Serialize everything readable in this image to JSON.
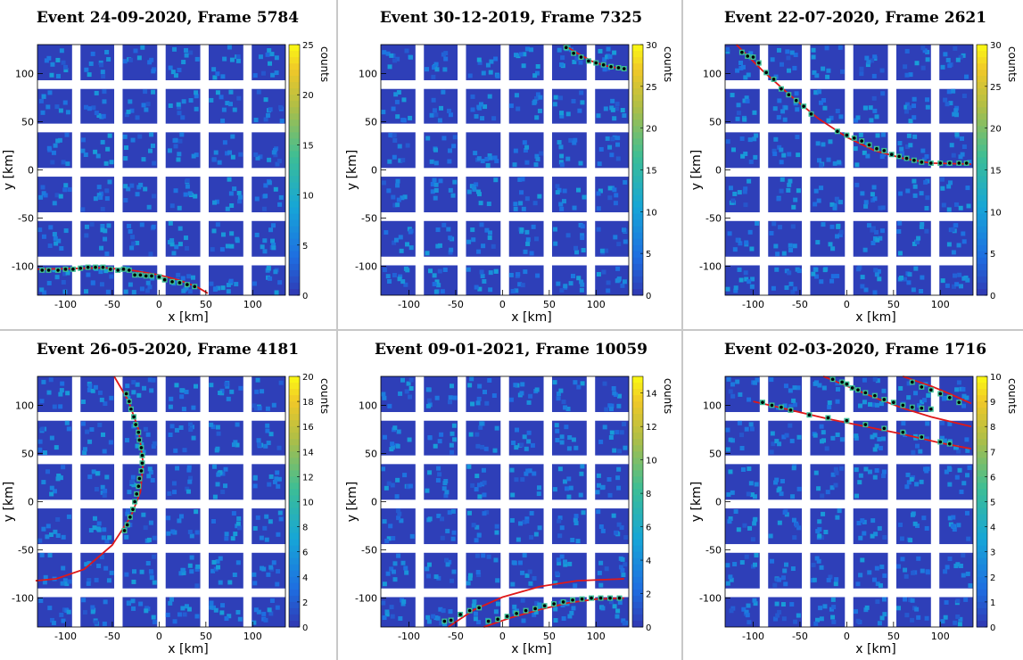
{
  "chart_data": [
    {
      "type": "heatmap",
      "title": "Event 24-09-2020, Frame 5784",
      "xlabel": "x [km]",
      "ylabel": "y [km]",
      "zlabel": "counts",
      "xlim": [
        -130,
        135
      ],
      "ylim": [
        -130,
        130
      ],
      "xticks": [
        "-100",
        "-50",
        "0",
        "50",
        "100"
      ],
      "xtick_values": [
        -100,
        -50,
        0,
        50,
        100
      ],
      "yticks": [
        "100",
        "50",
        "0",
        "-50",
        "-100"
      ],
      "ytick_values": [
        100,
        50,
        0,
        -50,
        -100
      ],
      "zlim": [
        0,
        25
      ],
      "zticks": [
        "0",
        "5",
        "10",
        "15",
        "20",
        "25"
      ],
      "ztick_values": [
        0,
        5,
        10,
        15,
        20,
        25
      ],
      "track_points": [
        [
          -125,
          -104
        ],
        [
          -118,
          -104
        ],
        [
          -108,
          -104
        ],
        [
          -100,
          -103
        ],
        [
          -92,
          -103
        ],
        [
          -84,
          -102
        ],
        [
          -76,
          -101
        ],
        [
          -68,
          -101
        ],
        [
          -60,
          -101
        ],
        [
          -52,
          -103
        ],
        [
          -44,
          -104
        ],
        [
          -38,
          -103
        ],
        [
          -32,
          -104
        ],
        [
          -26,
          -109
        ],
        [
          -20,
          -109
        ],
        [
          -14,
          -110
        ],
        [
          -8,
          -110
        ],
        [
          0,
          -111
        ],
        [
          6,
          -114
        ],
        [
          14,
          -116
        ],
        [
          22,
          -117
        ],
        [
          30,
          -119
        ],
        [
          38,
          -121
        ]
      ],
      "fit_curves": [
        [
          [
            -130,
            -103
          ],
          [
            -100,
            -102.5
          ],
          [
            -60,
            -101.5
          ],
          [
            -30,
            -104
          ],
          [
            0,
            -109
          ],
          [
            20,
            -114
          ],
          [
            40,
            -121
          ],
          [
            52,
            -128
          ]
        ]
      ]
    },
    {
      "type": "heatmap",
      "title": "Event 30-12-2019, Frame 7325",
      "xlabel": "x [km]",
      "ylabel": "y [km]",
      "zlabel": "counts",
      "xlim": [
        -130,
        135
      ],
      "ylim": [
        -130,
        130
      ],
      "xticks": [
        "-100",
        "-50",
        "0",
        "50",
        "100"
      ],
      "xtick_values": [
        -100,
        -50,
        0,
        50,
        100
      ],
      "yticks": [
        "100",
        "50",
        "0",
        "-50",
        "-100"
      ],
      "ytick_values": [
        100,
        50,
        0,
        -50,
        -100
      ],
      "zlim": [
        0,
        30
      ],
      "zticks": [
        "0",
        "5",
        "10",
        "15",
        "20",
        "25",
        "30"
      ],
      "ztick_values": [
        0,
        5,
        10,
        15,
        20,
        25,
        30
      ],
      "track_points": [
        [
          68,
          127
        ],
        [
          76,
          121
        ],
        [
          84,
          117
        ],
        [
          92,
          113
        ],
        [
          100,
          111
        ],
        [
          108,
          109
        ],
        [
          116,
          107
        ],
        [
          124,
          106
        ],
        [
          130,
          105
        ]
      ],
      "fit_curves": [
        [
          [
            65,
            130
          ],
          [
            80,
            121
          ],
          [
            95,
            113
          ],
          [
            110,
            108
          ],
          [
            133,
            104
          ]
        ]
      ]
    },
    {
      "type": "heatmap",
      "title": "Event 22-07-2020, Frame 2621",
      "xlabel": "x [km]",
      "ylabel": "y [km]",
      "zlabel": "counts",
      "xlim": [
        -130,
        135
      ],
      "ylim": [
        -130,
        130
      ],
      "xticks": [
        "-100",
        "-50",
        "0",
        "50",
        "100"
      ],
      "xtick_values": [
        -100,
        -50,
        0,
        50,
        100
      ],
      "yticks": [
        "100",
        "50",
        "0",
        "-50",
        "-100"
      ],
      "ytick_values": [
        100,
        50,
        0,
        -50,
        -100
      ],
      "zlim": [
        0,
        30
      ],
      "zticks": [
        "0",
        "5",
        "10",
        "15",
        "20",
        "25",
        "30"
      ],
      "ztick_values": [
        0,
        5,
        10,
        15,
        20,
        25,
        30
      ],
      "track_points": [
        [
          -112,
          122
        ],
        [
          -106,
          118
        ],
        [
          -100,
          117
        ],
        [
          -94,
          111
        ],
        [
          -86,
          101
        ],
        [
          -78,
          94
        ],
        [
          -70,
          84
        ],
        [
          -62,
          78
        ],
        [
          -54,
          72
        ],
        [
          -46,
          66
        ],
        [
          -38,
          58
        ],
        [
          -10,
          40
        ],
        [
          0,
          36
        ],
        [
          8,
          33
        ],
        [
          16,
          30
        ],
        [
          24,
          26
        ],
        [
          32,
          22
        ],
        [
          40,
          20
        ],
        [
          48,
          16
        ],
        [
          56,
          14
        ],
        [
          64,
          12
        ],
        [
          72,
          10
        ],
        [
          80,
          8
        ],
        [
          90,
          7
        ],
        [
          100,
          7
        ],
        [
          110,
          7
        ],
        [
          120,
          7
        ],
        [
          128,
          7
        ]
      ],
      "fit_curves": [
        [
          [
            -118,
            130
          ],
          [
            -90,
            103
          ],
          [
            -60,
            77
          ],
          [
            -30,
            53
          ],
          [
            0,
            34
          ],
          [
            30,
            20
          ],
          [
            60,
            12
          ],
          [
            90,
            7
          ],
          [
            133,
            6
          ]
        ]
      ]
    },
    {
      "type": "heatmap",
      "title": "Event 26-05-2020, Frame 4181",
      "xlabel": "x [km]",
      "ylabel": "y [km]",
      "zlabel": "counts",
      "xlim": [
        -130,
        135
      ],
      "ylim": [
        -130,
        130
      ],
      "xticks": [
        "-100",
        "-50",
        "0",
        "50",
        "100"
      ],
      "xtick_values": [
        -100,
        -50,
        0,
        50,
        100
      ],
      "yticks": [
        "100",
        "50",
        "0",
        "-50",
        "-100"
      ],
      "ytick_values": [
        100,
        50,
        0,
        -50,
        -100
      ],
      "zlim": [
        0,
        20
      ],
      "zticks": [
        "0",
        "2",
        "4",
        "6",
        "8",
        "10",
        "12",
        "14",
        "16",
        "18",
        "20"
      ],
      "ztick_values": [
        0,
        2,
        4,
        6,
        8,
        10,
        12,
        14,
        16,
        18,
        20
      ],
      "track_points": [
        [
          -35,
          112
        ],
        [
          -32,
          104
        ],
        [
          -30,
          96
        ],
        [
          -27,
          88
        ],
        [
          -25,
          80
        ],
        [
          -22,
          72
        ],
        [
          -21,
          64
        ],
        [
          -19,
          56
        ],
        [
          -18,
          48
        ],
        [
          -18,
          40
        ],
        [
          -19,
          32
        ],
        [
          -21,
          24
        ],
        [
          -22,
          16
        ],
        [
          -24,
          8
        ],
        [
          -26,
          0
        ],
        [
          -28,
          -8
        ],
        [
          -31,
          -16
        ],
        [
          -34,
          -24
        ],
        [
          -37,
          -30
        ]
      ],
      "fit_curves": [
        [
          [
            -48,
            130
          ],
          [
            -33,
            105
          ],
          [
            -22,
            75
          ],
          [
            -17,
            40
          ],
          [
            -20,
            10
          ],
          [
            -30,
            -15
          ],
          [
            -50,
            -45
          ],
          [
            -80,
            -70
          ],
          [
            -110,
            -80
          ],
          [
            -132,
            -82
          ]
        ]
      ]
    },
    {
      "type": "heatmap",
      "title": "Event 09-01-2021, Frame 10059",
      "xlabel": "x [km]",
      "ylabel": "y [km]",
      "zlabel": "counts",
      "xlim": [
        -130,
        135
      ],
      "ylim": [
        -130,
        130
      ],
      "xticks": [
        "-100",
        "-50",
        "0",
        "50",
        "100"
      ],
      "xtick_values": [
        -100,
        -50,
        0,
        50,
        100
      ],
      "yticks": [
        "100",
        "50",
        "0",
        "-50",
        "-100"
      ],
      "ytick_values": [
        100,
        50,
        0,
        -50,
        -100
      ],
      "zlim": [
        0,
        15
      ],
      "zticks": [
        "0",
        "2",
        "4",
        "6",
        "8",
        "10",
        "12",
        "14"
      ],
      "ztick_values": [
        0,
        2,
        4,
        6,
        8,
        10,
        12,
        14
      ],
      "track_points": [
        [
          -62,
          -124
        ],
        [
          -55,
          -123
        ],
        [
          -45,
          -117
        ],
        [
          -35,
          -113
        ],
        [
          -25,
          -110
        ],
        [
          -15,
          -124
        ],
        [
          -5,
          -122
        ],
        [
          5,
          -119
        ],
        [
          15,
          -116
        ],
        [
          25,
          -113
        ],
        [
          35,
          -111
        ],
        [
          45,
          -108
        ],
        [
          55,
          -106
        ],
        [
          65,
          -104
        ],
        [
          75,
          -102
        ],
        [
          85,
          -101
        ],
        [
          95,
          -100
        ],
        [
          105,
          -100
        ],
        [
          115,
          -100
        ],
        [
          125,
          -100
        ]
      ],
      "fit_curves": [
        [
          [
            -58,
            -130
          ],
          [
            -30,
            -112
          ],
          [
            0,
            -99
          ],
          [
            40,
            -88
          ],
          [
            80,
            -82
          ],
          [
            130,
            -80
          ]
        ],
        [
          [
            -20,
            -130
          ],
          [
            10,
            -120
          ],
          [
            40,
            -112
          ],
          [
            70,
            -105
          ],
          [
            100,
            -101
          ],
          [
            130,
            -100
          ]
        ]
      ]
    },
    {
      "type": "heatmap",
      "title": "Event 02-03-2020, Frame 1716",
      "xlabel": "x [km]",
      "ylabel": "y [km]",
      "zlabel": "counts",
      "xlim": [
        -130,
        135
      ],
      "ylim": [
        -130,
        130
      ],
      "xticks": [
        "-100",
        "-50",
        "0",
        "50",
        "100"
      ],
      "xtick_values": [
        -100,
        -50,
        0,
        50,
        100
      ],
      "yticks": [
        "100",
        "50",
        "0",
        "-50",
        "-100"
      ],
      "ytick_values": [
        100,
        50,
        0,
        -50,
        -100
      ],
      "zlim": [
        0,
        10
      ],
      "zticks": [
        "0",
        "1",
        "2",
        "3",
        "4",
        "5",
        "6",
        "7",
        "8",
        "9",
        "10"
      ],
      "ztick_values": [
        0,
        1,
        2,
        3,
        4,
        5,
        6,
        7,
        8,
        9,
        10
      ],
      "track_points": [
        [
          -15,
          127
        ],
        [
          -5,
          124
        ],
        [
          0,
          122
        ],
        [
          6,
          118
        ],
        [
          12,
          116
        ],
        [
          20,
          113
        ],
        [
          30,
          110
        ],
        [
          40,
          106
        ],
        [
          50,
          103
        ],
        [
          60,
          100
        ],
        [
          70,
          98
        ],
        [
          80,
          97
        ],
        [
          90,
          96
        ],
        [
          -90,
          103
        ],
        [
          -80,
          100
        ],
        [
          -70,
          98
        ],
        [
          -60,
          95
        ],
        [
          -40,
          90
        ],
        [
          -20,
          87
        ],
        [
          0,
          84
        ],
        [
          20,
          80
        ],
        [
          40,
          76
        ],
        [
          60,
          72
        ],
        [
          80,
          67
        ],
        [
          100,
          62
        ],
        [
          110,
          60
        ],
        [
          70,
          124
        ],
        [
          80,
          119
        ],
        [
          90,
          116
        ],
        [
          100,
          112
        ],
        [
          110,
          108
        ],
        [
          120,
          103
        ]
      ],
      "fit_curves": [
        [
          [
            -25,
            130
          ],
          [
            0,
            120
          ],
          [
            30,
            108
          ],
          [
            60,
            97
          ],
          [
            90,
            88
          ],
          [
            133,
            78
          ]
        ],
        [
          [
            -100,
            104
          ],
          [
            -60,
            95
          ],
          [
            -20,
            86
          ],
          [
            20,
            78
          ],
          [
            60,
            70
          ],
          [
            100,
            61
          ],
          [
            133,
            55
          ]
        ],
        [
          [
            60,
            130
          ],
          [
            90,
            120
          ],
          [
            110,
            112
          ],
          [
            133,
            102
          ]
        ]
      ]
    }
  ]
}
